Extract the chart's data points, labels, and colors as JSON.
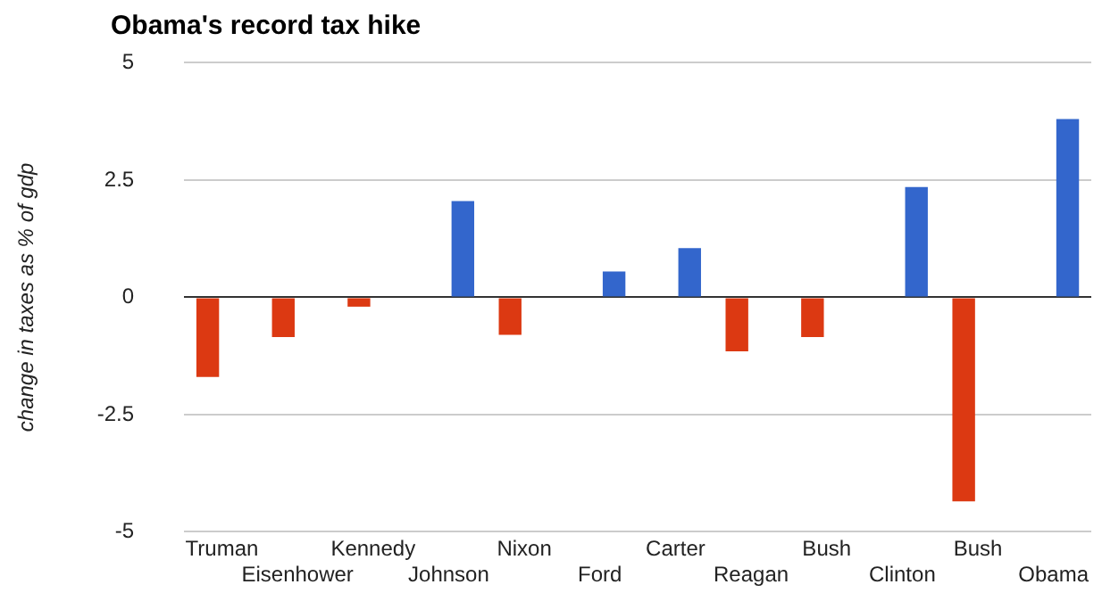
{
  "chart_data": {
    "type": "bar",
    "title": "Obama's record tax hike",
    "ylabel": "change in taxes as % of gdp",
    "categories": [
      "Truman",
      "Eisenhower",
      "Kennedy",
      "Johnson",
      "Nixon",
      "Ford",
      "Carter",
      "Reagan",
      "Bush",
      "Clinton",
      "Bush",
      "Obama"
    ],
    "series": [
      {
        "color": "#dc3912",
        "values": [
          -1.7,
          -0.85,
          -0.2,
          null,
          -0.8,
          null,
          null,
          -1.15,
          -0.85,
          null,
          -4.35,
          null
        ]
      },
      {
        "color": "#3366cc",
        "values": [
          null,
          null,
          null,
          2.05,
          null,
          0.55,
          1.05,
          null,
          null,
          2.35,
          null,
          3.8
        ]
      }
    ],
    "ylim": [
      -5,
      5
    ],
    "yticks": [
      {
        "value": -5,
        "label": "-5"
      },
      {
        "value": -2.5,
        "label": "-2.5"
      },
      0,
      2.5,
      5
    ],
    "grid": "y",
    "legend": false
  }
}
